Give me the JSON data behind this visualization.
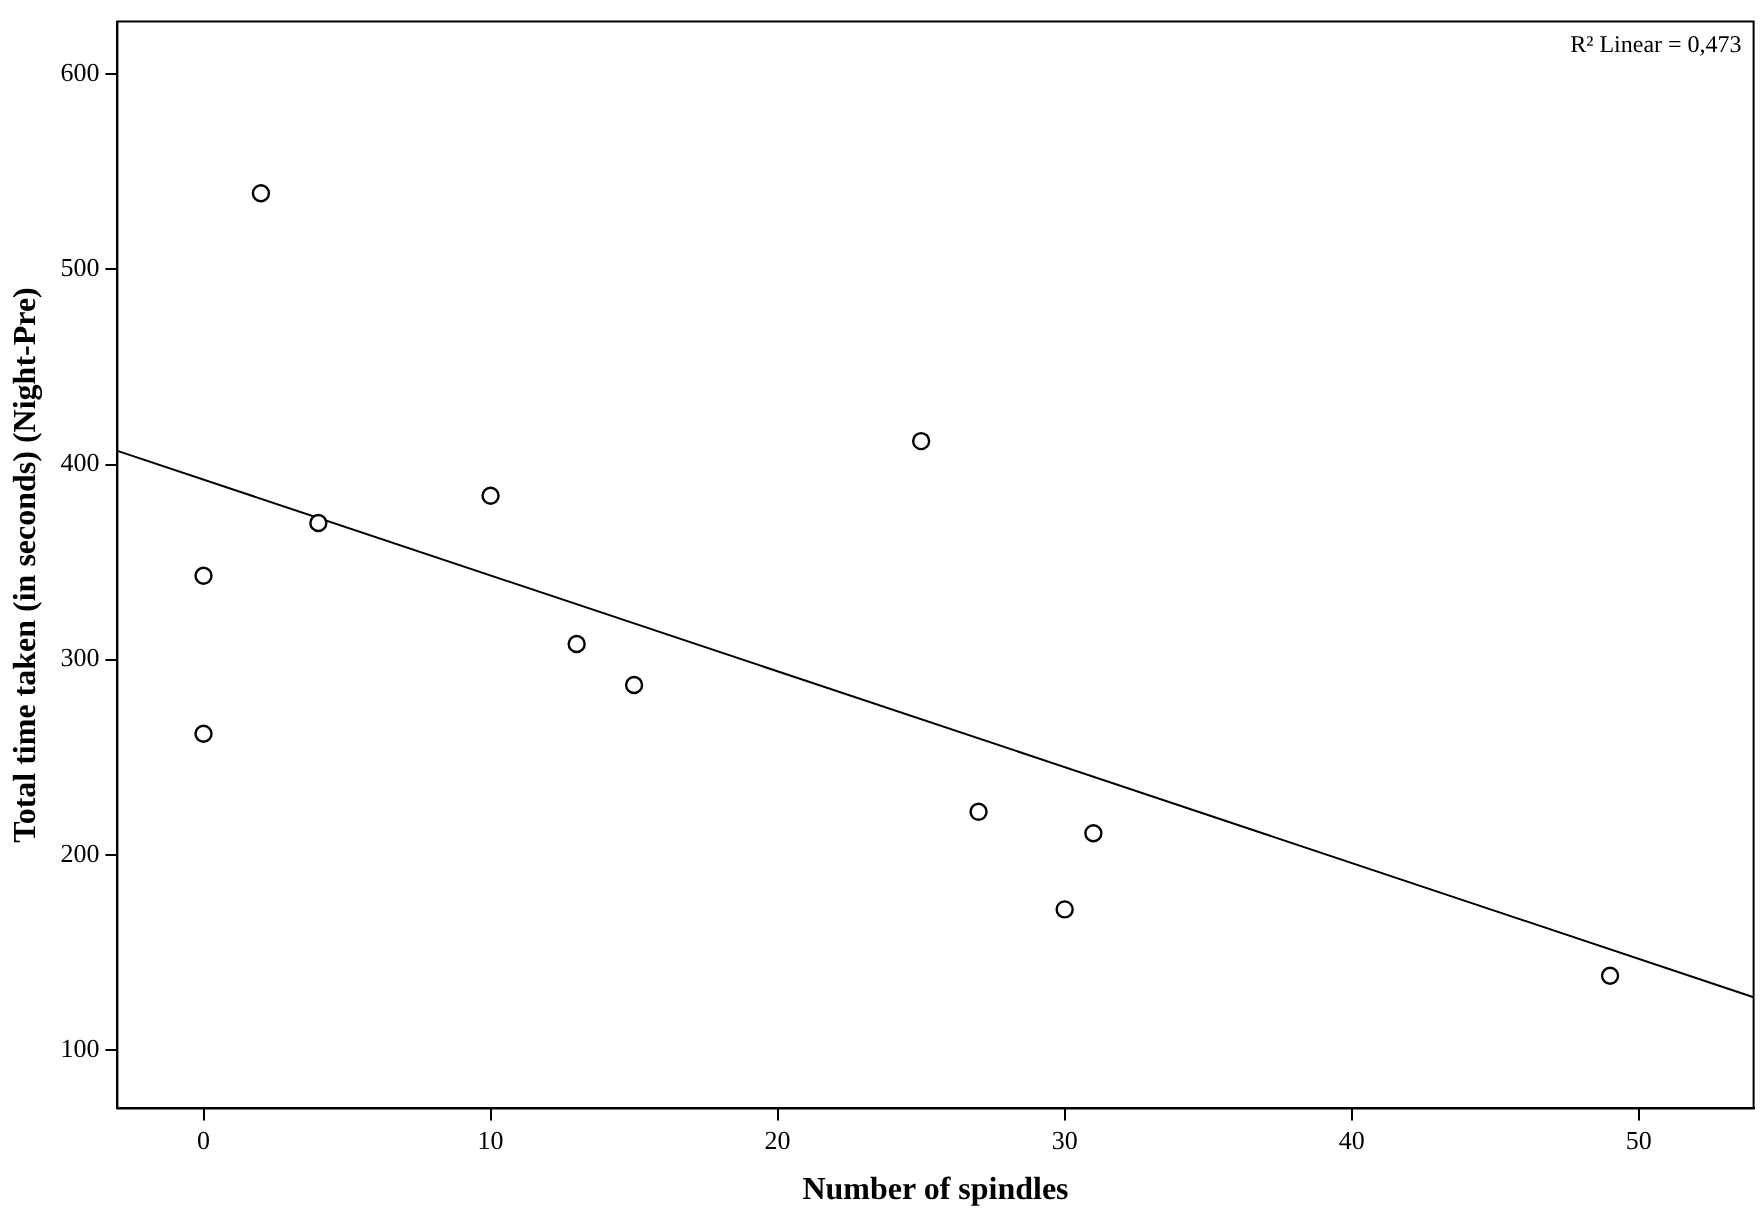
{
  "chart_data": {
    "type": "scatter",
    "xlabel": "Number of spindles",
    "ylabel": "Total time taken (in seconds) (Night-Pre)",
    "annotations": [
      "R² Linear = 0,473"
    ],
    "series": [
      {
        "type": "scatter",
        "color": "#000000",
        "marker": "circle",
        "x": [
          0,
          0,
          2,
          4,
          10,
          13,
          15,
          25,
          27,
          30,
          31,
          49
        ],
        "values": [
          343,
          262,
          539,
          370,
          384,
          308,
          287,
          412,
          222,
          172,
          211,
          138
        ]
      },
      {
        "type": "line",
        "color": "#000000",
        "marker": "none",
        "line_style": "solid",
        "x": [
          -3,
          54
        ],
        "values": [
          407,
          127
        ]
      }
    ],
    "xlim": [
      -3,
      54
    ],
    "ylim": [
      70,
      627
    ],
    "xticks": [
      0,
      10,
      20,
      30,
      40,
      50
    ],
    "yticks": [
      100,
      200,
      300,
      400,
      500,
      600
    ],
    "grid": false,
    "legend": false
  }
}
